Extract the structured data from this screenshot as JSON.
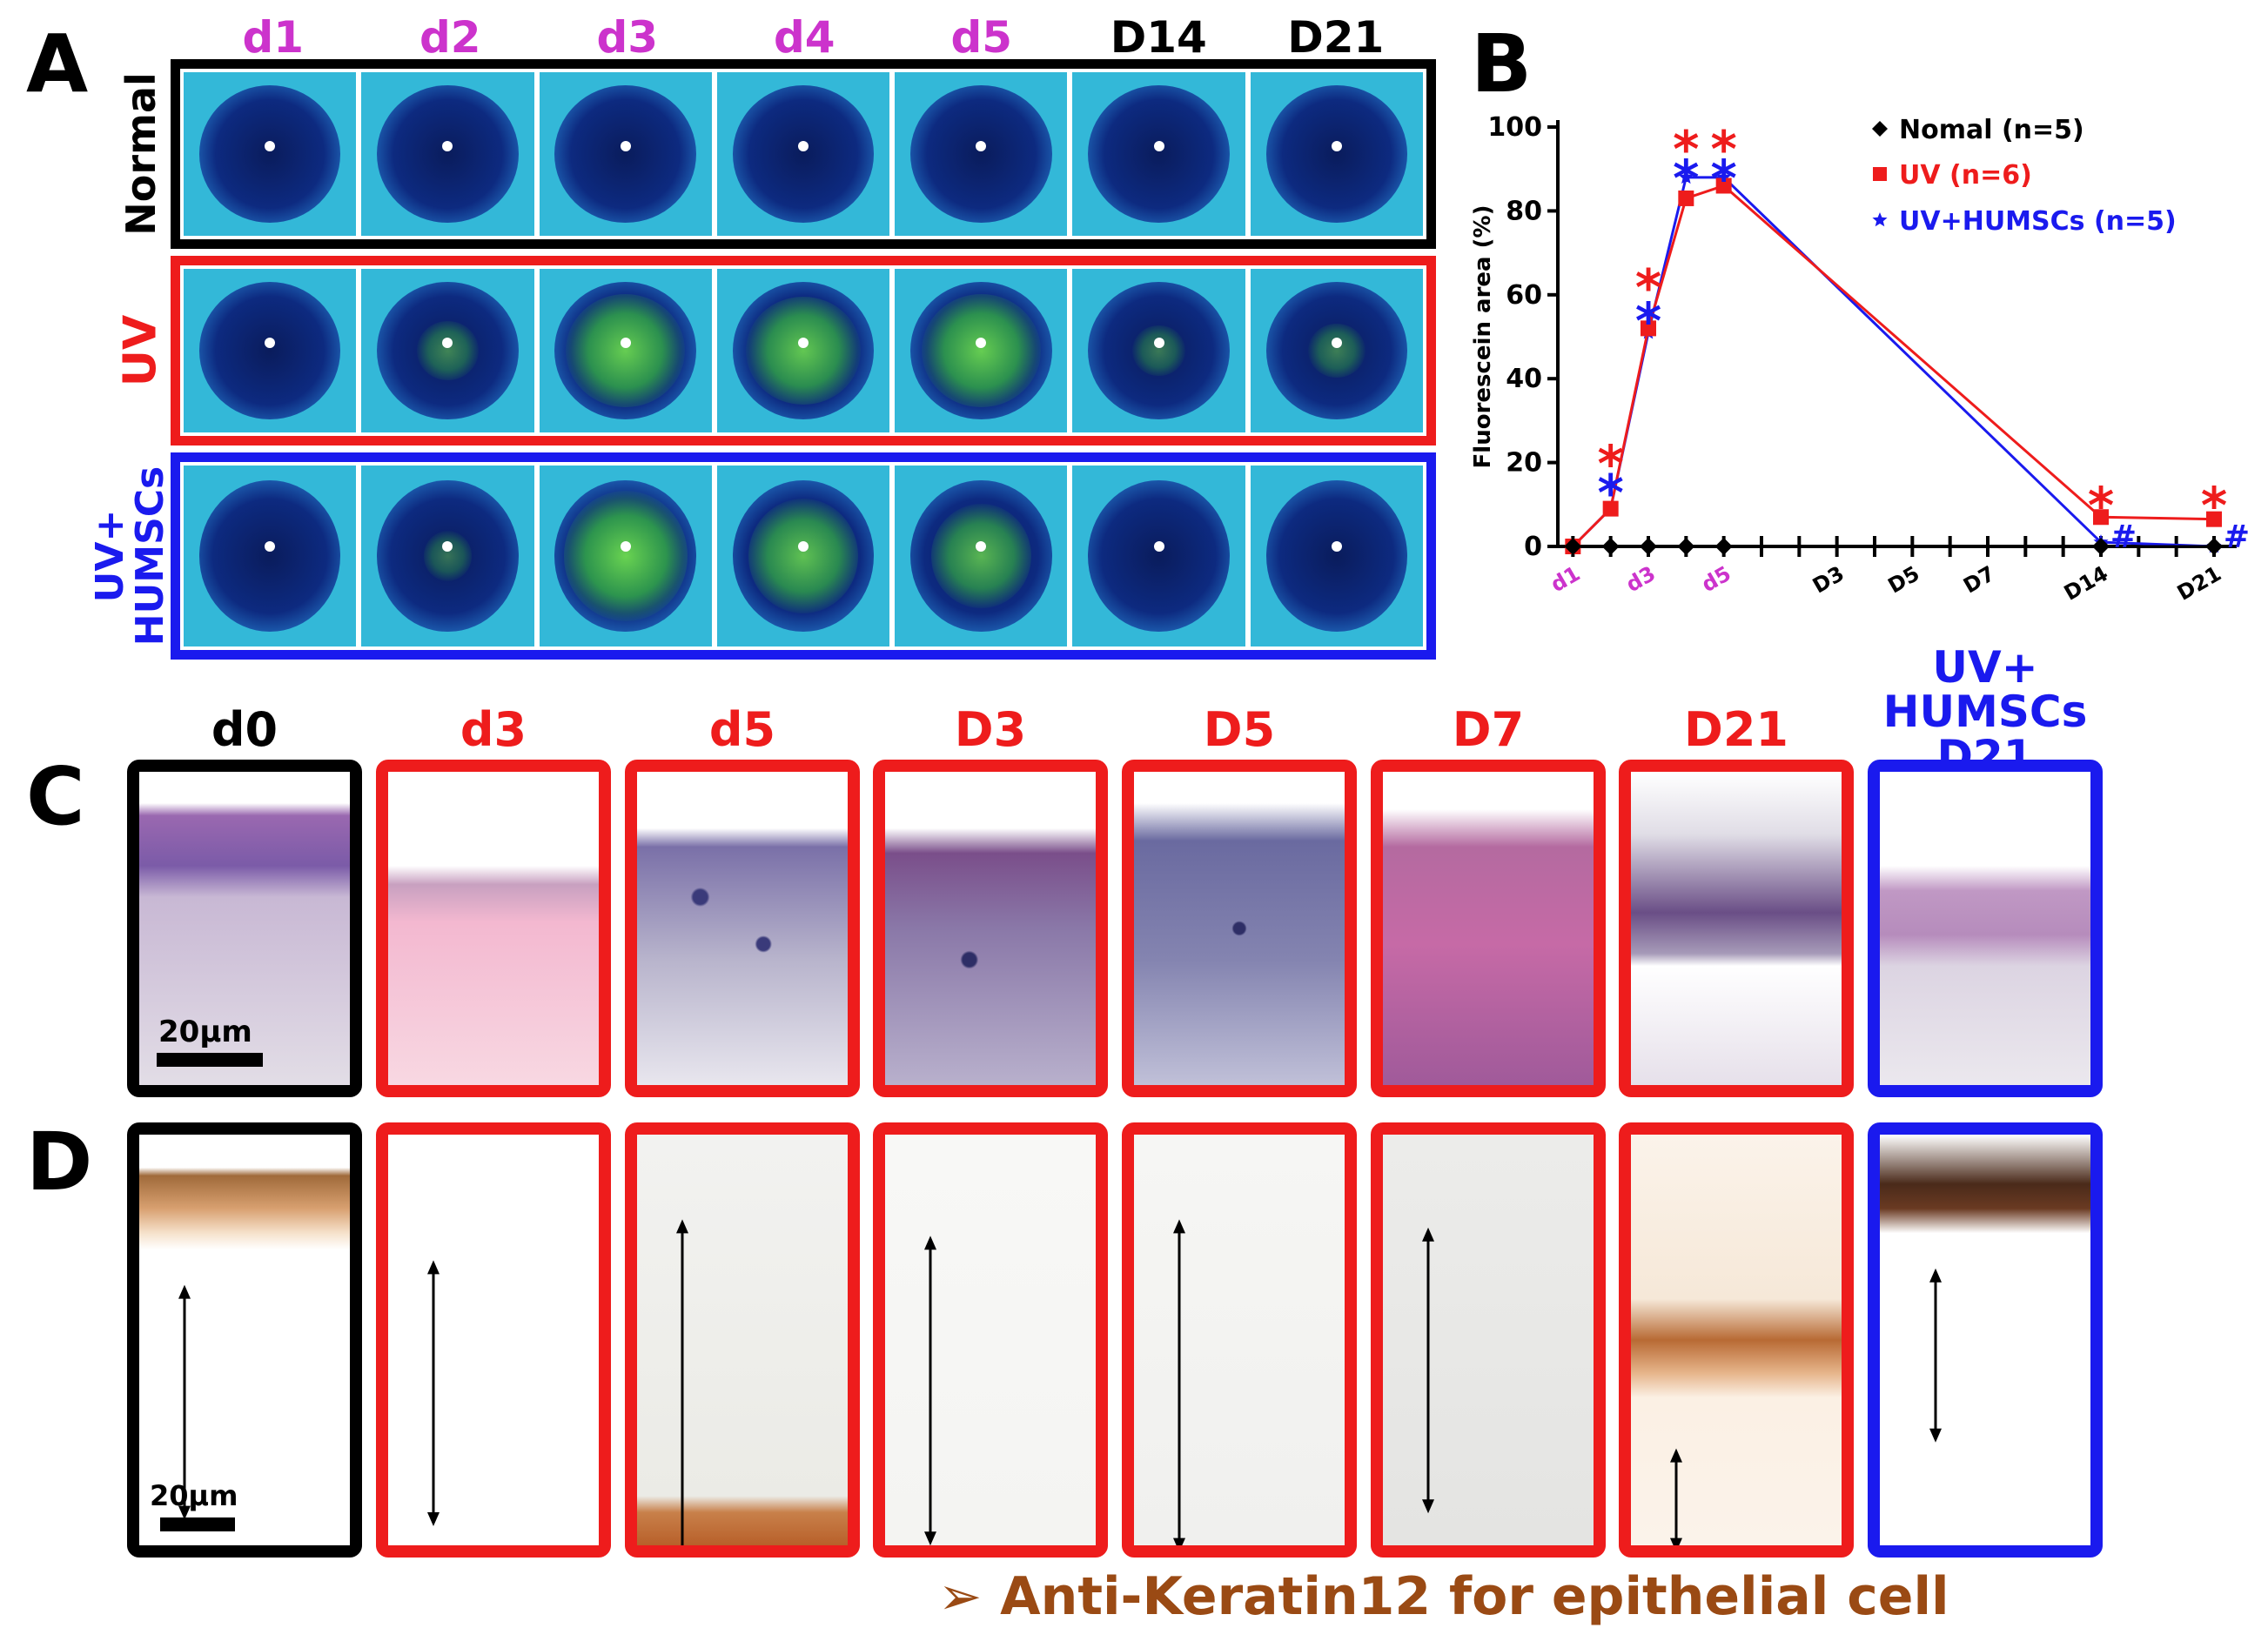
{
  "panels": {
    "a": "A",
    "b": "B",
    "c": "C",
    "d": "D"
  },
  "panel_a": {
    "columns": [
      {
        "label": "d1",
        "color": "#cc33cc"
      },
      {
        "label": "d2",
        "color": "#cc33cc"
      },
      {
        "label": "d3",
        "color": "#cc33cc"
      },
      {
        "label": "d4",
        "color": "#cc33cc"
      },
      {
        "label": "d5",
        "color": "#cc33cc"
      },
      {
        "label": "D14",
        "color": "#000000"
      },
      {
        "label": "D21",
        "color": "#000000"
      }
    ],
    "rows": [
      {
        "label": "Normal",
        "color": "#000000",
        "stain": [
          0,
          0,
          0,
          0,
          0,
          0,
          0
        ]
      },
      {
        "label": "UV",
        "color": "#ee1c1c",
        "stain": [
          0,
          0.2,
          0.8,
          0.75,
          0.8,
          0.1,
          0.15
        ]
      },
      {
        "label_line1": "UV+",
        "label_line2": "HUMSCs",
        "color": "#1a1aee",
        "stain": [
          0,
          0.05,
          0.85,
          0.7,
          0.6,
          0,
          0
        ]
      }
    ]
  },
  "panel_c": {
    "columns": [
      {
        "label": "d0",
        "color": "#000000"
      },
      {
        "label": "d3",
        "color": "#ee1c1c"
      },
      {
        "label": "d5",
        "color": "#ee1c1c"
      },
      {
        "label": "D3",
        "color": "#ee1c1c"
      },
      {
        "label": "D5",
        "color": "#ee1c1c"
      },
      {
        "label": "D7",
        "color": "#ee1c1c"
      },
      {
        "label": "D21",
        "color": "#ee1c1c"
      },
      {
        "label_line1": "UV+",
        "label_line2": "HUMSCs",
        "label_line3": "D21",
        "color": "#1a1aee"
      }
    ],
    "scale_label": "20μm"
  },
  "panel_d": {
    "scale_label": "20μm",
    "caption": "➢ Anti-Keratin12 for epithelial cell"
  },
  "chart_data": {
    "type": "line",
    "ylabel": "Fluorescein area (%)",
    "ylim": [
      0,
      100
    ],
    "yticks": [
      0,
      20,
      40,
      60,
      80,
      100
    ],
    "xtick_labels": [
      {
        "label": "d1",
        "pos": 1,
        "color": "#cc33cc"
      },
      {
        "label": "d3",
        "pos": 3,
        "color": "#cc33cc"
      },
      {
        "label": "d5",
        "pos": 5,
        "color": "#cc33cc"
      },
      {
        "label": "D3",
        "pos": 8,
        "color": "#000000"
      },
      {
        "label": "D5",
        "pos": 10,
        "color": "#000000"
      },
      {
        "label": "D7",
        "pos": 12,
        "color": "#000000"
      },
      {
        "label": "D14",
        "pos": 15,
        "color": "#000000"
      },
      {
        "label": "D21",
        "pos": 18,
        "color": "#000000"
      }
    ],
    "xtick_positions": [
      1,
      2,
      3,
      4,
      5,
      6,
      7,
      8,
      9,
      10,
      11,
      12,
      13,
      14,
      15,
      16,
      17,
      18
    ],
    "xlim": [
      0.6,
      18.6
    ],
    "series": [
      {
        "name": "Nomal (n=5)",
        "color": "#000000",
        "marker": "diamond",
        "x": [
          1,
          2,
          3,
          4,
          5,
          15,
          18
        ],
        "y": [
          0,
          0,
          0,
          0,
          0,
          0,
          0
        ]
      },
      {
        "name": "UV (n=6)",
        "color": "#ee1c1c",
        "marker": "square",
        "x": [
          1,
          2,
          3,
          4,
          5,
          15,
          18
        ],
        "y": [
          0,
          9,
          52,
          83,
          86,
          7,
          6.5
        ]
      },
      {
        "name": "UV+HUMSCs (n=5)",
        "color": "#1a1aee",
        "marker": "star",
        "x": [
          1,
          2,
          3,
          4,
          5,
          15,
          18
        ],
        "y": [
          0,
          9,
          51,
          88,
          88,
          1,
          0
        ]
      }
    ],
    "annotations": [
      {
        "text": "*",
        "x": 2,
        "y": 21,
        "color": "#ee1c1c"
      },
      {
        "text": "*",
        "x": 2,
        "y": 14,
        "color": "#1a1aee"
      },
      {
        "text": "*",
        "x": 3,
        "y": 63,
        "color": "#ee1c1c"
      },
      {
        "text": "*",
        "x": 3,
        "y": 55,
        "color": "#1a1aee"
      },
      {
        "text": "*",
        "x": 4,
        "y": 96,
        "color": "#ee1c1c"
      },
      {
        "text": "*",
        "x": 4,
        "y": 89,
        "color": "#1a1aee"
      },
      {
        "text": "*",
        "x": 5,
        "y": 96,
        "color": "#ee1c1c"
      },
      {
        "text": "*",
        "x": 5,
        "y": 89,
        "color": "#1a1aee"
      },
      {
        "text": "*",
        "x": 15,
        "y": 11,
        "color": "#ee1c1c"
      },
      {
        "text": "#",
        "x": 15.6,
        "y": 2,
        "color": "#1a1aee"
      },
      {
        "text": "*",
        "x": 18,
        "y": 11,
        "color": "#ee1c1c"
      },
      {
        "text": "#",
        "x": 18.6,
        "y": 2,
        "color": "#1a1aee"
      }
    ]
  }
}
